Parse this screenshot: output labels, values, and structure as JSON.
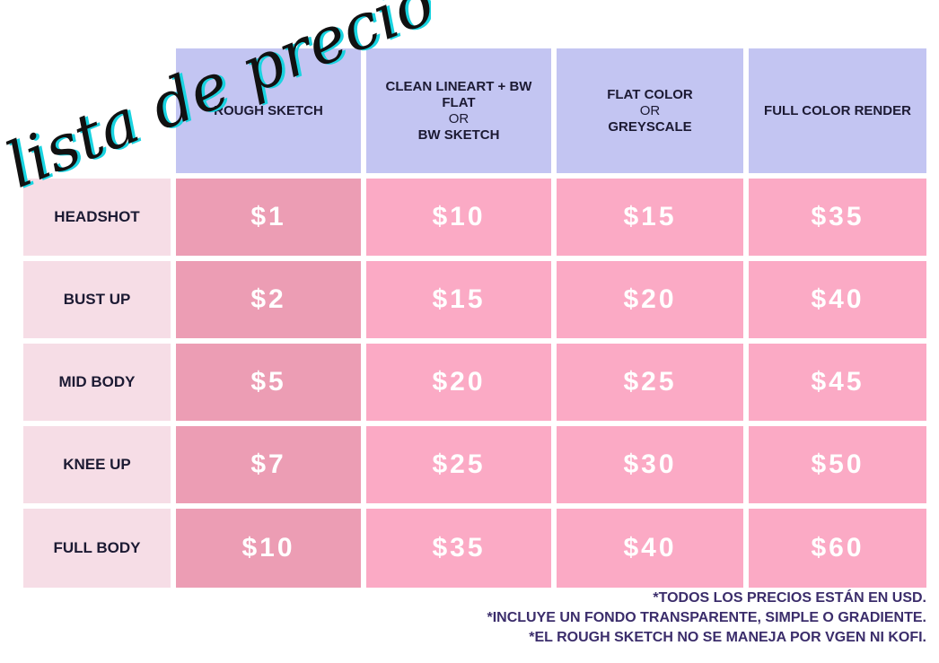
{
  "title": "lista de precios",
  "table": {
    "columns": [
      {
        "lines": [
          "ROUGH SKETCH"
        ]
      },
      {
        "lines": [
          "CLEAN LINEART + BW",
          "FLAT",
          "OR",
          "BW SKETCH"
        ]
      },
      {
        "lines": [
          "FLAT COLOR",
          "OR",
          "GREYSCALE"
        ]
      },
      {
        "lines": [
          "FULL COLOR RENDER"
        ]
      }
    ],
    "rows": [
      {
        "label": "HEADSHOT",
        "prices": [
          "$1",
          "$10",
          "$15",
          "$35"
        ]
      },
      {
        "label": "BUST UP",
        "prices": [
          "$2",
          "$15",
          "$20",
          "$40"
        ]
      },
      {
        "label": "MID BODY",
        "prices": [
          "$5",
          "$20",
          "$25",
          "$45"
        ]
      },
      {
        "label": "KNEE UP",
        "prices": [
          "$7",
          "$25",
          "$30",
          "$50"
        ]
      },
      {
        "label": "FULL BODY",
        "prices": [
          "$10",
          "$35",
          "$40",
          "$60"
        ]
      }
    ]
  },
  "notes": [
    "*TODOS  LOS PRECIOS ESTÁN EN USD.",
    "*INCLUYE UN FONDO TRANSPARENTE, SIMPLE O GRADIENTE.",
    "*EL ROUGH SKETCH NO SE MANEJA POR VGEN NI KOFI."
  ]
}
